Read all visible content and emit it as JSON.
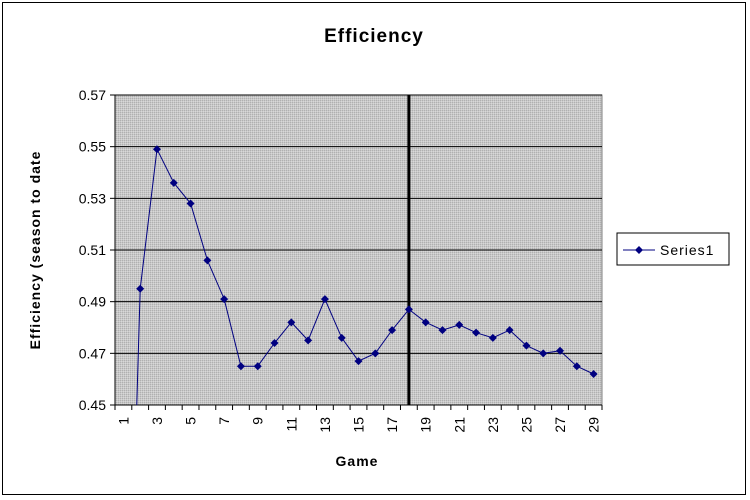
{
  "chart_data": {
    "type": "line",
    "title": "Efficiency",
    "xlabel": "Game",
    "ylabel": "Efficiency (season to date",
    "ylim": [
      0.45,
      0.57
    ],
    "yticks": [
      "0.45",
      "0.47",
      "0.49",
      "0.51",
      "0.53",
      "0.55",
      "0.57"
    ],
    "xlim": [
      1,
      29
    ],
    "xticks": [
      "1",
      "3",
      "5",
      "7",
      "9",
      "11",
      "13",
      "15",
      "17",
      "19",
      "21",
      "23",
      "25",
      "27",
      "29"
    ],
    "grid": true,
    "legend_position": "right",
    "marker_line_at_game": 18,
    "series": [
      {
        "name": "Series1",
        "color": "#000080",
        "x": [
          2,
          3,
          4,
          5,
          6,
          7,
          8,
          9,
          10,
          11,
          12,
          13,
          14,
          15,
          16,
          17,
          18,
          19,
          20,
          21,
          22,
          23,
          24,
          25,
          26,
          27,
          28,
          29
        ],
        "y": [
          0.495,
          0.549,
          0.536,
          0.528,
          0.506,
          0.491,
          0.465,
          0.465,
          0.474,
          0.482,
          0.475,
          0.491,
          0.476,
          0.467,
          0.47,
          0.479,
          0.487,
          0.482,
          0.479,
          0.481,
          0.478,
          0.476,
          0.479,
          0.473,
          0.47,
          0.471,
          0.465,
          0.462
        ],
        "y_start_below_axis": true
      }
    ]
  },
  "colors": {
    "plot_background": "#c0c0c0",
    "gridline": "#000000",
    "series_line": "#000080"
  }
}
